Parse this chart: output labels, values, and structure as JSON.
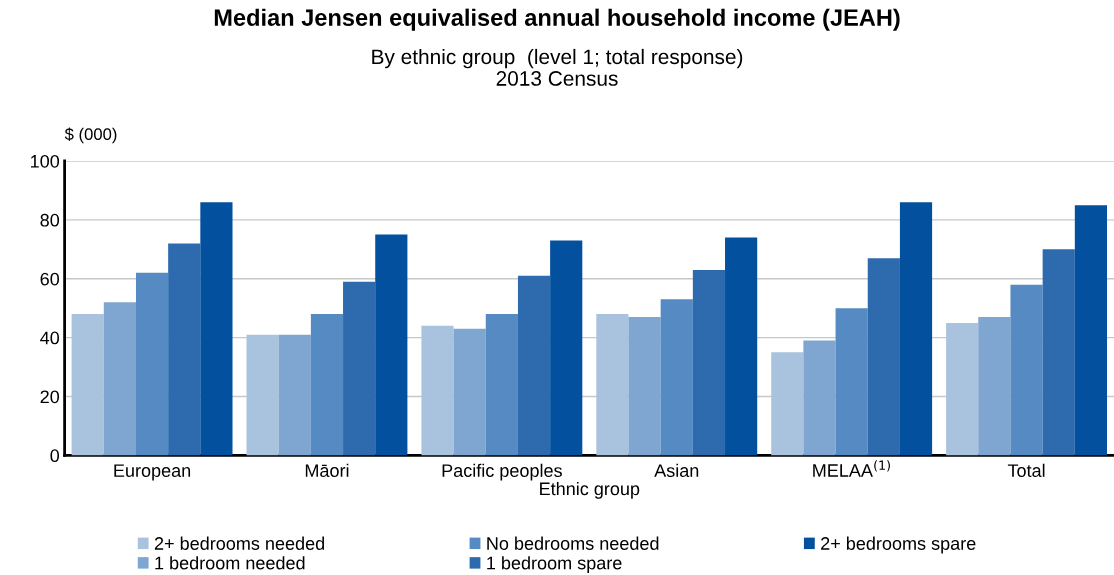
{
  "chart_data": {
    "type": "bar",
    "title": "Median Jensen equivalised annual household income (JEAH)",
    "subtitle": "By ethnic group  (level 1; total response)\n2013 Census",
    "xlabel": "Ethnic group",
    "ylabel": "$ (000)",
    "categories": [
      "European",
      "Māori",
      "Pacific peoples",
      "Asian",
      "MELAA$^{(1)}$",
      "Total"
    ],
    "series": [
      {
        "name": "2+ bedrooms needed",
        "color": "#a9c3de",
        "values": [
          48,
          41,
          44,
          48,
          35,
          45
        ]
      },
      {
        "name": "1 bedroom needed",
        "color": "#7fa6d0",
        "values": [
          52,
          41,
          43,
          47,
          39,
          47
        ]
      },
      {
        "name": "No bedrooms needed",
        "color": "#558ac2",
        "values": [
          62,
          48,
          48,
          53,
          50,
          58
        ]
      },
      {
        "name": "1 bedroom spare",
        "color": "#2d6aae",
        "values": [
          72,
          59,
          61,
          63,
          67,
          70
        ]
      },
      {
        "name": "2+ bedrooms spare",
        "color": "#02509e",
        "values": [
          86,
          75,
          73,
          74,
          86,
          85
        ]
      }
    ],
    "ylim": [
      0,
      100
    ],
    "yticks": [
      0,
      20,
      40,
      60,
      80,
      100
    ],
    "grid": "y",
    "legend": "bottom"
  }
}
